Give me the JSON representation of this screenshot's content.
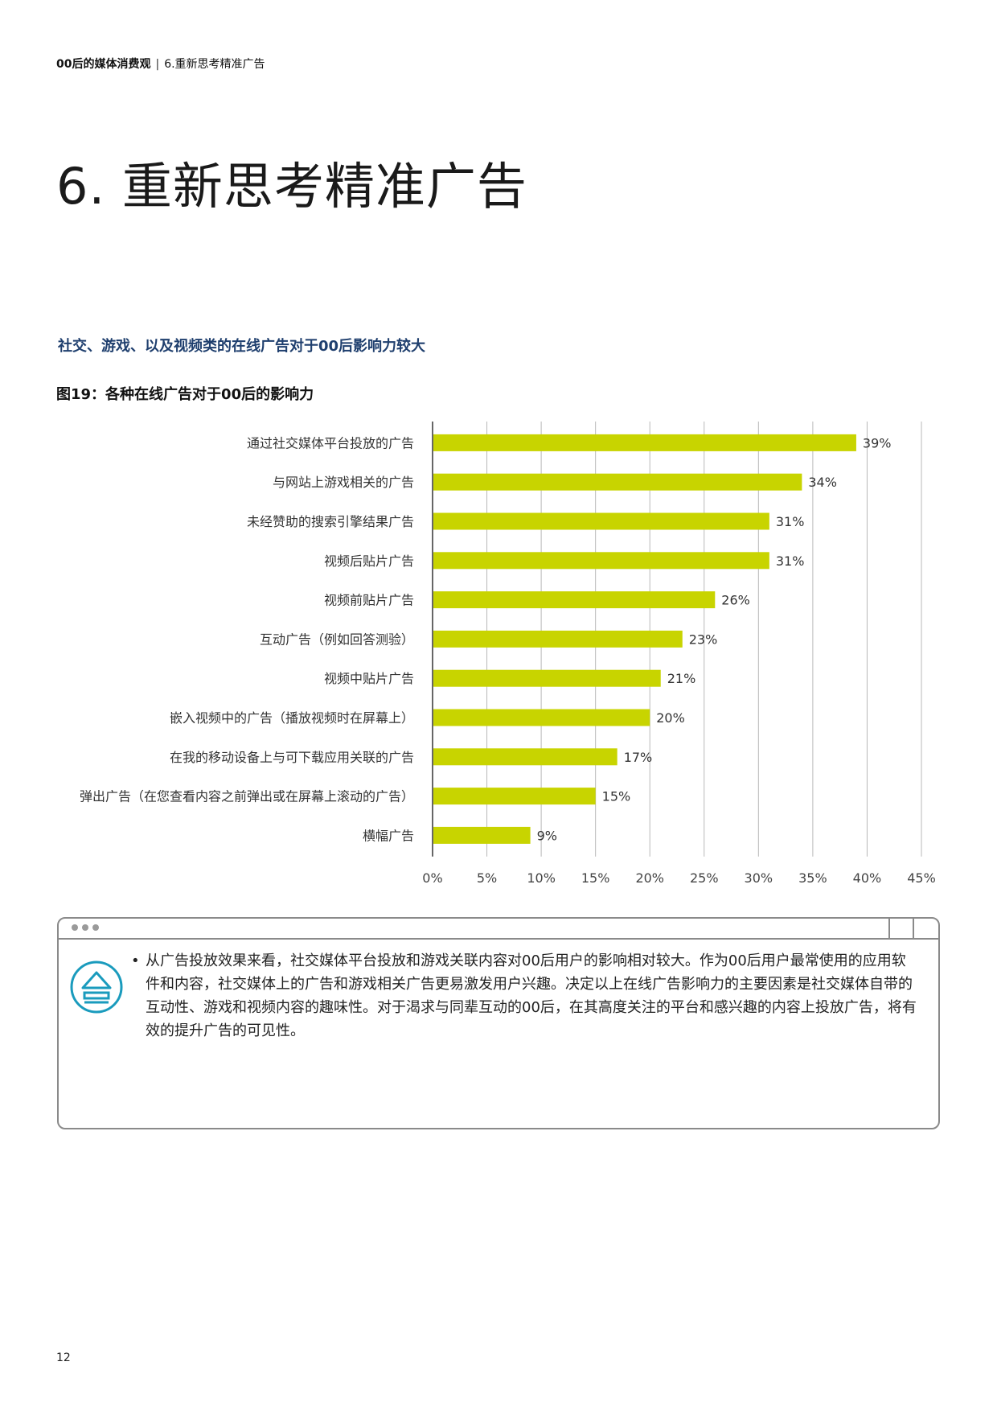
{
  "header": {
    "section": "00后的媒体消费观",
    "chapter": "6.重新思考精准广告"
  },
  "title": "6. 重新思考精准广告",
  "subtitle": "社交、游戏、以及视频类的在线广告对于00后影响力较大",
  "figure_title": "图19：各种在线广告对于00后的影响力",
  "chart_data": {
    "type": "bar",
    "orientation": "horizontal",
    "categories": [
      "通过社交媒体平台投放的广告",
      "与网站上游戏相关的广告",
      "未经赞助的搜索引擎结果广告",
      "视频后贴片广告",
      "视频前贴片广告",
      "互动广告（例如回答测验）",
      "视频中贴片广告",
      "嵌入视频中的广告（播放视频时在屏幕上）",
      "在我的移动设备上与可下载应用关联的广告",
      "弹出广告（在您查看内容之前弹出或在屏幕上滚动的广告）",
      "横幅广告"
    ],
    "values": [
      39,
      34,
      31,
      31,
      26,
      23,
      21,
      20,
      17,
      15,
      9
    ],
    "value_labels": [
      "39%",
      "34%",
      "31%",
      "31%",
      "26%",
      "23%",
      "21%",
      "20%",
      "17%",
      "15%",
      "9%"
    ],
    "xlim": [
      0,
      45
    ],
    "ticks": [
      "0%",
      "5%",
      "10%",
      "15%",
      "20%",
      "25%",
      "30%",
      "35%",
      "40%",
      "45%"
    ],
    "bar_color": "#c8d400",
    "grid": true
  },
  "card": {
    "text": "从广告投放效果来看，社交媒体平台投放和游戏关联内容对00后用户的影响相对较大。作为00后用户最常使用的应用软件和内容，社交媒体上的广告和游戏相关广告更易激发用户兴趣。决定以上在线广告影响力的主要因素是社交媒体自带的互动性、游戏和视频内容的趣味性。对于渴求与同辈互动的00后，在其高度关注的平台和感兴趣的内容上投放广告，将有效的提升广告的可见性。",
    "icon": "eject-icon",
    "icon_color": "#1a9bbd"
  },
  "page_number": "12"
}
